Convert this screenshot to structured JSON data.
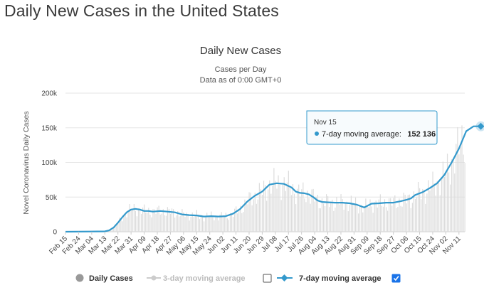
{
  "page": {
    "title": "Daily New Cases in the United States"
  },
  "chart_data": {
    "type": "line",
    "title": "Daily New Cases",
    "subtitle": "Cases per Day",
    "subtitle2": "Data as of 0:00 GMT+0",
    "ylabel": "Novel Coronavirus Daily Cases",
    "ylim": [
      0,
      200000
    ],
    "yticks": [
      0,
      50000,
      100000,
      150000,
      200000
    ],
    "ytick_labels": [
      "0",
      "50k",
      "100k",
      "150k",
      "200k"
    ],
    "x_tick_labels": [
      "Feb 15",
      "Feb 24",
      "Mar 04",
      "Mar 13",
      "Mar 22",
      "Mar 31",
      "Apr 09",
      "Apr 18",
      "Apr 27",
      "May 06",
      "May 15",
      "May 24",
      "Jun 02",
      "Jun 11",
      "Jun 20",
      "Jun 29",
      "Jul 08",
      "Jul 17",
      "Jul 26",
      "Aug 04",
      "Aug 13",
      "Aug 22",
      "Aug 31",
      "Sep 09",
      "Sep 18",
      "Sep 27",
      "Oct 06",
      "Oct 15",
      "Oct 24",
      "Nov 02",
      "Nov 11"
    ],
    "x_start": "Feb 15",
    "x_end": "Nov 15",
    "series": [
      {
        "name": "7-day moving average",
        "color": "#3399cc",
        "x_day": [
          0,
          27,
          30,
          33,
          36,
          39,
          42,
          45,
          48,
          51,
          54,
          57,
          60,
          65,
          70,
          75,
          80,
          85,
          90,
          95,
          100,
          105,
          110,
          115,
          120,
          125,
          130,
          135,
          140,
          145,
          150,
          155,
          158,
          161,
          164,
          167,
          170,
          173,
          176,
          180,
          185,
          190,
          195,
          200,
          205,
          210,
          215,
          220,
          225,
          230,
          234,
          237,
          240,
          245,
          250,
          255,
          260,
          265,
          270,
          275,
          280,
          285,
          260,
          262,
          264,
          266,
          268,
          270,
          272,
          274,
          276,
          278,
          280,
          282,
          284
        ],
        "values": [
          0,
          500,
          2000,
          6000,
          13000,
          21000,
          28000,
          32000,
          33000,
          32000,
          30000,
          30000,
          29000,
          30000,
          29000,
          28000,
          25000,
          24000,
          23500,
          22000,
          22500,
          22000,
          22500,
          26000,
          33000,
          44000,
          52000,
          58000,
          68000,
          70000,
          69000,
          64000,
          58000,
          56000,
          55500,
          54000,
          50000,
          45000,
          43000,
          42500,
          42000,
          42000,
          41000,
          39000,
          35000,
          40500,
          41000,
          42000,
          42000,
          44000,
          46000,
          48000,
          53000,
          57000,
          63000,
          70000,
          82000,
          100000,
          120000,
          145000,
          152136,
          152136,
          null,
          null,
          null,
          null,
          null,
          null,
          null,
          null,
          null,
          null,
          null,
          null,
          null
        ]
      }
    ],
    "legend": [
      "Daily Cases",
      "3-day moving average",
      "7-day moving average"
    ],
    "legend_position": "bottom",
    "tooltip": {
      "date": "Nov 15",
      "label": "7-day moving average:",
      "value": "152 136"
    }
  },
  "colors": {
    "line": "#3399cc",
    "bars": "#dcdcdc",
    "grid": "#e6e6e6",
    "tooltip_border": "#3399cc",
    "checkbox_checked": "#1a73e8"
  }
}
